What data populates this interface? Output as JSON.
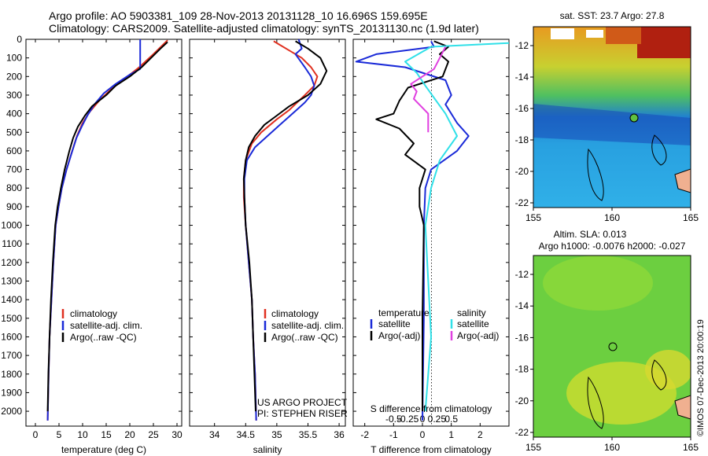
{
  "header": {
    "line1": "Argo profile: AO 5903381_109 28-Nov-2013 20131128_10 16.696S 159.695E",
    "line2": "Climatology: CARS2009. Satellite-adjusted climatology: synTS_20131130.nc (1.9d later)"
  },
  "colors": {
    "climatology": "#e03020",
    "satellite": "#1a2ad8",
    "argo": "#000000",
    "salinity_sat": "#30e0e8",
    "salinity_argo": "#e040e0"
  },
  "depth_axis": {
    "range": [
      0,
      2080
    ],
    "ticks": [
      0,
      100,
      200,
      300,
      400,
      500,
      600,
      700,
      800,
      900,
      1000,
      1100,
      1200,
      1300,
      1400,
      1500,
      1600,
      1700,
      1800,
      1900,
      2000
    ]
  },
  "chart_data": [
    {
      "type": "line",
      "name": "temperature-panel",
      "xlabel": "temperature (deg C)",
      "xlim": [
        -2,
        31
      ],
      "xticks": [
        0,
        5,
        10,
        15,
        20,
        25,
        30
      ],
      "ylim": [
        0,
        2080
      ],
      "legend": {
        "position": "bottom-left",
        "entries": [
          "climatology",
          "satellite-adj. clim.",
          "Argo(..raw -QC)"
        ]
      },
      "series": [
        {
          "name": "climatology",
          "color": "#e03020",
          "points": [
            [
              28,
              5
            ],
            [
              27,
              30
            ],
            [
              25,
              80
            ],
            [
              22,
              150
            ],
            [
              19,
              210
            ],
            [
              16,
              270
            ],
            [
              13.5,
              330
            ],
            [
              11.5,
              390
            ],
            [
              10,
              450
            ],
            [
              8.8,
              520
            ],
            [
              7.8,
              600
            ],
            [
              6.6,
              700
            ],
            [
              5.6,
              800
            ],
            [
              4.9,
              900
            ],
            [
              4.3,
              1000
            ],
            [
              3.8,
              1200
            ],
            [
              3.4,
              1400
            ],
            [
              3.0,
              1600
            ],
            [
              2.8,
              1800
            ],
            [
              2.6,
              2050
            ]
          ]
        },
        {
          "name": "satellite-adj. clim.",
          "color": "#1a2ad8",
          "points": [
            [
              22.2,
              0
            ],
            [
              22.2,
              160
            ],
            [
              20,
              190
            ],
            [
              17,
              240
            ],
            [
              14.5,
              290
            ],
            [
              12.5,
              350
            ],
            [
              11,
              410
            ],
            [
              9.8,
              470
            ],
            [
              8.7,
              530
            ],
            [
              7.7,
              610
            ],
            [
              6.6,
              700
            ],
            [
              5.6,
              800
            ],
            [
              4.9,
              900
            ],
            [
              4.3,
              1000
            ],
            [
              3.8,
              1200
            ],
            [
              3.4,
              1400
            ],
            [
              3.0,
              1600
            ],
            [
              2.8,
              1800
            ],
            [
              2.6,
              2050
            ]
          ]
        },
        {
          "name": "Argo(..raw -QC)",
          "color": "#000000",
          "points": [
            [
              28,
              15
            ],
            [
              26.5,
              50
            ],
            [
              24.5,
              100
            ],
            [
              22.5,
              150
            ],
            [
              20,
              200
            ],
            [
              17,
              250
            ],
            [
              15,
              300
            ],
            [
              12,
              360
            ],
            [
              10.5,
              410
            ],
            [
              9,
              470
            ],
            [
              8,
              530
            ],
            [
              7.2,
              600
            ],
            [
              6.2,
              700
            ],
            [
              5.4,
              800
            ],
            [
              4.7,
              900
            ],
            [
              4.2,
              1000
            ],
            [
              3.7,
              1200
            ],
            [
              3.3,
              1400
            ],
            [
              3.0,
              1600
            ],
            [
              2.75,
              1800
            ],
            [
              2.6,
              2000
            ]
          ]
        }
      ]
    },
    {
      "type": "line",
      "name": "salinity-panel",
      "xlabel": "salinity",
      "xlim": [
        33.6,
        36.1
      ],
      "xticks": [
        34,
        34.5,
        35,
        35.5,
        36
      ],
      "xtick_labels": [
        "34",
        "34.5",
        "35",
        "35.5",
        "36"
      ],
      "ylim": [
        0,
        2080
      ],
      "legend": {
        "position": "bottom-left",
        "entries": [
          "climatology",
          "satellite-adj. clim.",
          "Argo(..raw -QC)"
        ]
      },
      "annotation": [
        "US ARGO PROJECT",
        "PI: STEPHEN RISER"
      ],
      "series": [
        {
          "name": "climatology",
          "color": "#e03020",
          "points": [
            [
              34.95,
              10
            ],
            [
              35.05,
              30
            ],
            [
              35.2,
              60
            ],
            [
              35.4,
              100
            ],
            [
              35.55,
              150
            ],
            [
              35.65,
              200
            ],
            [
              35.6,
              250
            ],
            [
              35.45,
              300
            ],
            [
              35.2,
              380
            ],
            [
              35.0,
              430
            ],
            [
              34.75,
              500
            ],
            [
              34.6,
              560
            ],
            [
              34.5,
              650
            ],
            [
              34.47,
              750
            ],
            [
              34.47,
              850
            ],
            [
              34.5,
              1000
            ],
            [
              34.55,
              1200
            ],
            [
              34.6,
              1400
            ],
            [
              34.62,
              1600
            ],
            [
              34.65,
              1800
            ],
            [
              34.67,
              2050
            ]
          ]
        },
        {
          "name": "satellite-adj. clim.",
          "color": "#1a2ad8",
          "points": [
            [
              35.35,
              0
            ],
            [
              35.4,
              50
            ],
            [
              35.3,
              80
            ],
            [
              35.45,
              150
            ],
            [
              35.55,
              200
            ],
            [
              35.6,
              250
            ],
            [
              35.55,
              300
            ],
            [
              35.45,
              340
            ],
            [
              35.25,
              400
            ],
            [
              35.05,
              460
            ],
            [
              34.85,
              520
            ],
            [
              34.65,
              580
            ],
            [
              34.52,
              650
            ],
            [
              34.48,
              750
            ],
            [
              34.48,
              850
            ],
            [
              34.5,
              1000
            ],
            [
              34.55,
              1200
            ],
            [
              34.6,
              1400
            ],
            [
              34.62,
              1600
            ],
            [
              34.65,
              1800
            ],
            [
              34.67,
              2050
            ]
          ]
        },
        {
          "name": "Argo(..raw -QC)",
          "color": "#000000",
          "points": [
            [
              35.3,
              10
            ],
            [
              35.5,
              50
            ],
            [
              35.7,
              100
            ],
            [
              35.8,
              170
            ],
            [
              35.7,
              240
            ],
            [
              35.5,
              300
            ],
            [
              35.2,
              360
            ],
            [
              35.0,
              410
            ],
            [
              34.8,
              460
            ],
            [
              34.65,
              520
            ],
            [
              34.55,
              580
            ],
            [
              34.5,
              650
            ],
            [
              34.47,
              750
            ],
            [
              34.48,
              850
            ],
            [
              34.5,
              1000
            ],
            [
              34.56,
              1200
            ],
            [
              34.6,
              1400
            ],
            [
              34.62,
              1600
            ],
            [
              34.64,
              1800
            ],
            [
              34.66,
              2000
            ]
          ]
        }
      ]
    },
    {
      "type": "line",
      "name": "difference-panel",
      "xlabel": "T difference from climatology",
      "xlabel_top": "S difference from climatology",
      "xlim": [
        -2.4,
        3.0
      ],
      "xticks": [
        -2,
        -1,
        0,
        1,
        2
      ],
      "s_xticks": [
        -1,
        -0.5,
        0,
        0.5,
        1
      ],
      "s_xtick_labels": [
        "-0.5",
        "-0.25",
        "0",
        "0.25",
        "0.5"
      ],
      "ylim": [
        0,
        2080
      ],
      "legend": {
        "position": "bottom",
        "temperature_title": "temperature",
        "salinity_title": "salinity",
        "t_entries": [
          "satellite",
          "Argo(-adj)"
        ],
        "s_entries": [
          "satellite",
          "Argo(-adj)"
        ]
      },
      "series": [
        {
          "name": "T satellite",
          "color": "#1a2ad8",
          "points": [
            [
              0.3,
              10
            ],
            [
              0.4,
              40
            ],
            [
              -1.6,
              80
            ],
            [
              -2.3,
              120
            ],
            [
              -0.6,
              150
            ],
            [
              0.8,
              220
            ],
            [
              1.0,
              300
            ],
            [
              0.8,
              350
            ],
            [
              1.2,
              450
            ],
            [
              1.6,
              520
            ],
            [
              1.2,
              600
            ],
            [
              0.3,
              700
            ],
            [
              0.1,
              800
            ],
            [
              0.05,
              1000
            ],
            [
              0.05,
              1500
            ],
            [
              0,
              2050
            ]
          ]
        },
        {
          "name": "T Argo(-adj)",
          "color": "#000000",
          "points": [
            [
              0.4,
              10
            ],
            [
              0.9,
              40
            ],
            [
              0.6,
              80
            ],
            [
              0.9,
              120
            ],
            [
              0.7,
              200
            ],
            [
              -0.5,
              260
            ],
            [
              -0.8,
              330
            ],
            [
              -1.0,
              400
            ],
            [
              -1.6,
              430
            ],
            [
              -0.8,
              480
            ],
            [
              -0.3,
              560
            ],
            [
              -0.6,
              620
            ],
            [
              0.1,
              700
            ],
            [
              -0.1,
              800
            ],
            [
              -0.1,
              900
            ],
            [
              0.05,
              1000
            ],
            [
              0,
              1500
            ],
            [
              0,
              2000
            ]
          ]
        },
        {
          "name": "S satellite",
          "color": "#30e0e8",
          "points": [
            [
              3.0,
              20
            ],
            [
              0.3,
              40
            ],
            [
              -0.6,
              120
            ],
            [
              -0.2,
              180
            ],
            [
              0.1,
              250
            ],
            [
              0.8,
              400
            ],
            [
              1.2,
              520
            ],
            [
              0.6,
              650
            ],
            [
              0.3,
              800
            ],
            [
              0.1,
              1000
            ],
            [
              0.3,
              1600
            ],
            [
              0.1,
              2000
            ]
          ]
        },
        {
          "name": "S Argo(-adj)",
          "color": "#e040e0",
          "points": [
            [
              0.8,
              40
            ],
            [
              0.6,
              100
            ],
            [
              0.4,
              160
            ],
            [
              -0.4,
              240
            ],
            [
              -0.2,
              280
            ],
            [
              -0.3,
              320
            ],
            [
              0.2,
              400
            ],
            [
              0.2,
              500
            ]
          ]
        }
      ]
    }
  ],
  "maps": {
    "top": {
      "title": "sat. SST: 23.7  Argo: 27.8",
      "xticks": [
        "155",
        "160",
        "165"
      ],
      "yticks": [
        "-12",
        "-14",
        "-16",
        "-18",
        "-20",
        "-22"
      ]
    },
    "bottom": {
      "title1": "Altim. SLA: 0.013",
      "title2": "Argo h1000: -0.0076 h2000: -0.027",
      "xticks": [
        "155",
        "160",
        "165"
      ],
      "yticks": [
        "-12",
        "-14",
        "-16",
        "-18",
        "-20",
        "-22"
      ]
    },
    "credit": "©IMOS 07-Dec-2013 20:00:19"
  }
}
